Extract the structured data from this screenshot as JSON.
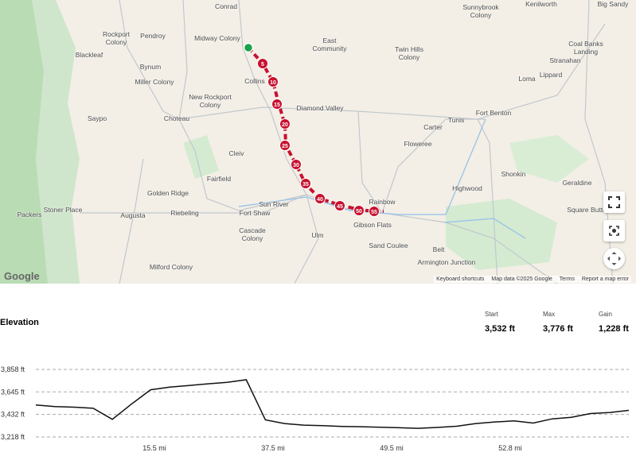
{
  "map": {
    "places": [
      "Rockport Colony",
      "Pendroy",
      "Midway Colony",
      "Conrad",
      "East Community",
      "Twin Hills Colony",
      "Sunnybrook Colony",
      "Kenilworth",
      "Big Sandy",
      "Coal Banks Landing",
      "Stranahan",
      "Lippard",
      "Loma",
      "Blackleaf",
      "Bynum",
      "Miller Colony",
      "Collins",
      "New Rockport Colony",
      "Diamond Valley",
      "Fort Benton",
      "Saypo",
      "Choteau",
      "Tunis",
      "Carter",
      "Floweree",
      "Cleiv",
      "Shonkin",
      "Fairfield",
      "Highwood",
      "Geraldine",
      "Golden Ridge",
      "Rainbow",
      "Sun River",
      "Packers",
      "Stoner Place",
      "Augusta",
      "Riebeling",
      "Fort Shaw",
      "Square Butte",
      "Gibson Flats",
      "Cascade Colony",
      "Ulm",
      "Sand Coulee",
      "Belt",
      "Armington Junction",
      "Milford Colony"
    ],
    "route_markers": [
      "5",
      "10",
      "15",
      "20",
      "25",
      "30",
      "35",
      "40",
      "45",
      "50",
      "55"
    ],
    "logo": "Google",
    "footer_links": [
      "Keyboard shortcuts",
      "Map data ©2025 Google",
      "Terms",
      "Report a map error"
    ]
  },
  "elevation": {
    "title": "Elevation",
    "stats": [
      {
        "label": "Start",
        "value": "3,532 ft"
      },
      {
        "label": "Max",
        "value": "3,776 ft"
      },
      {
        "label": "Gain",
        "value": "1,228 ft"
      }
    ],
    "ylim": [
      3218,
      3858
    ],
    "yticks": [
      {
        "value": 3858,
        "label": "3,858 ft"
      },
      {
        "value": 3645,
        "label": "3,645 ft"
      },
      {
        "value": 3432,
        "label": "3,432 ft"
      },
      {
        "value": 3218,
        "label": "3,218 ft"
      }
    ],
    "xticks": [
      "15.5 mi",
      "37.5 mi",
      "49.5 mi",
      "52.8 mi"
    ],
    "values": [
      3521,
      3506,
      3500,
      3490,
      3385,
      3530,
      3665,
      3690,
      3705,
      3722,
      3735,
      3760,
      3380,
      3345,
      3330,
      3325,
      3318,
      3315,
      3310,
      3305,
      3300,
      3308,
      3320,
      3345,
      3360,
      3370,
      3350,
      3390,
      3405,
      3440,
      3450,
      3470
    ]
  }
}
